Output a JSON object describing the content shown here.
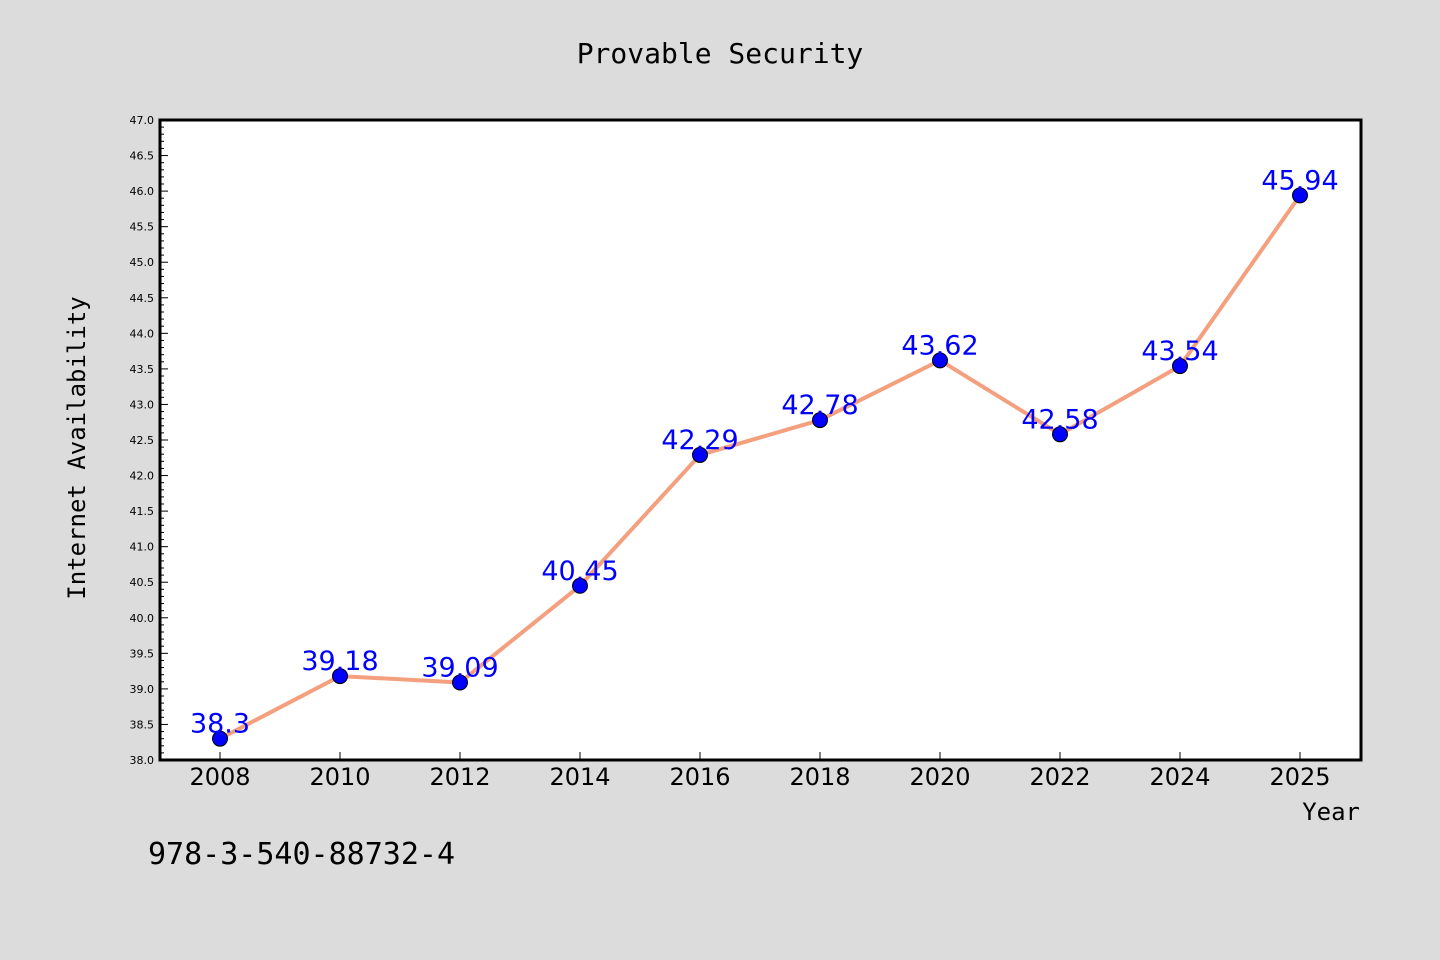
{
  "chart_data": {
    "type": "line",
    "title": "Provable Security",
    "xlabel": "Year",
    "ylabel": "Internet Availability",
    "categories": [
      "2008",
      "2010",
      "2012",
      "2014",
      "2016",
      "2018",
      "2020",
      "2022",
      "2024",
      "2025"
    ],
    "series": [
      {
        "values": [
          38.3,
          39.18,
          39.09,
          40.45,
          42.29,
          42.78,
          43.62,
          42.58,
          43.54,
          45.94
        ],
        "data_labels": [
          "38.3",
          "39.18",
          "39.09",
          "40.45",
          "42.29",
          "42.78",
          "43.62",
          "42.58",
          "43.54",
          "45.94"
        ],
        "line_color": "#f4a07f",
        "marker_color": "#0000ff"
      }
    ],
    "ylim": [
      38.0,
      47.0
    ],
    "y_ticks": [
      "38.0",
      "38.5",
      "39.0",
      "39.5",
      "40.0",
      "40.5",
      "41.0",
      "41.5",
      "42.0",
      "42.5",
      "43.0",
      "43.5",
      "44.0",
      "44.5",
      "45.0",
      "45.5",
      "46.0",
      "46.5",
      "47.0"
    ],
    "grid": false,
    "legend": "none"
  },
  "annotation": "978-3-540-88732-4",
  "colors": {
    "background": "#dcdcdc",
    "plot_background": "#ffffff",
    "line": "#f4a07f",
    "marker": "#0000ff",
    "data_label": "#0000ff"
  }
}
